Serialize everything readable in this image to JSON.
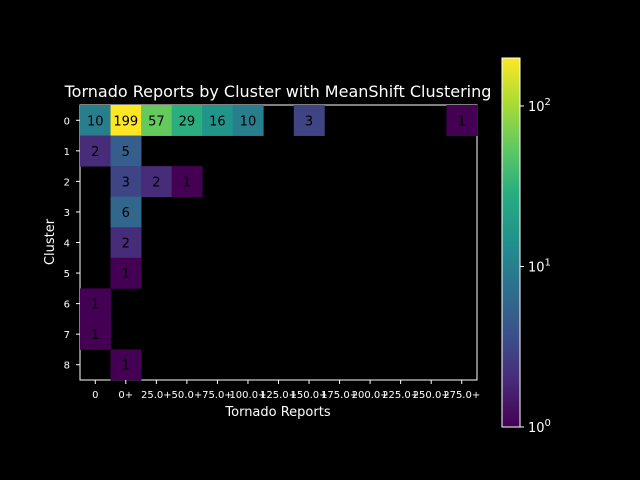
{
  "chart_data": {
    "type": "heatmap",
    "title": "Tornado Reports by Cluster with MeanShift Clustering",
    "xlabel": "Tornado Reports",
    "ylabel": "Cluster",
    "x_categories": [
      "0",
      "0+",
      "25.0+",
      "50.0+",
      "75.0+",
      "100.0+",
      "125.0+",
      "150.0+",
      "175.0+",
      "200.0+",
      "225.0+",
      "250.0+",
      "275.0+"
    ],
    "y_categories": [
      "0",
      "1",
      "2",
      "3",
      "4",
      "5",
      "6",
      "7",
      "8"
    ],
    "cells": [
      {
        "row": 0,
        "col": 0,
        "value": 10
      },
      {
        "row": 0,
        "col": 1,
        "value": 199
      },
      {
        "row": 0,
        "col": 2,
        "value": 57
      },
      {
        "row": 0,
        "col": 3,
        "value": 29
      },
      {
        "row": 0,
        "col": 4,
        "value": 16
      },
      {
        "row": 0,
        "col": 5,
        "value": 10
      },
      {
        "row": 0,
        "col": 7,
        "value": 3
      },
      {
        "row": 0,
        "col": 12,
        "value": 1
      },
      {
        "row": 1,
        "col": 0,
        "value": 2
      },
      {
        "row": 1,
        "col": 1,
        "value": 5
      },
      {
        "row": 2,
        "col": 1,
        "value": 3
      },
      {
        "row": 2,
        "col": 2,
        "value": 2
      },
      {
        "row": 2,
        "col": 3,
        "value": 1
      },
      {
        "row": 3,
        "col": 1,
        "value": 6
      },
      {
        "row": 4,
        "col": 1,
        "value": 2
      },
      {
        "row": 5,
        "col": 1,
        "value": 1
      },
      {
        "row": 6,
        "col": 0,
        "value": 1
      },
      {
        "row": 7,
        "col": 0,
        "value": 1
      },
      {
        "row": 8,
        "col": 1,
        "value": 1
      }
    ],
    "colorbar": {
      "scale": "log",
      "min": 1,
      "max": 199,
      "colormap": "viridis",
      "tick_values": [
        1,
        10,
        100
      ],
      "tick_labels": [
        {
          "base": "10",
          "exp": "0"
        },
        {
          "base": "10",
          "exp": "1"
        },
        {
          "base": "10",
          "exp": "2"
        }
      ]
    },
    "background_color": "#000000",
    "text_color": "#ffffff",
    "cell_label_color": "#000000"
  }
}
